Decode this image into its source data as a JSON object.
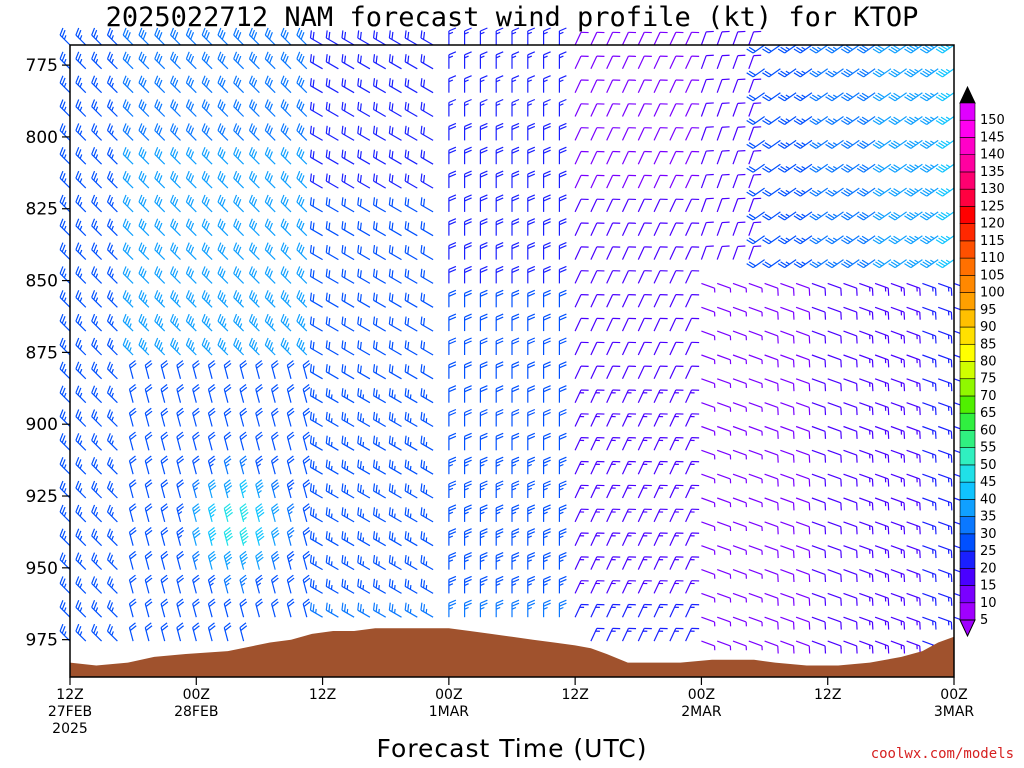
{
  "header": {
    "title": "2025022712 NAM forecast wind profile (kt) for KTOP"
  },
  "footer": {
    "xlabel": "Forecast Time (UTC)",
    "credit": "coolwx.com/models"
  },
  "colors": {
    "terrain": "#a0522d",
    "frame": "#000000",
    "credit": "#d62020"
  },
  "chart_data": {
    "type": "wind-barb-time-height",
    "title": "2025022712 NAM forecast wind profile (kt) for KTOP",
    "xlabel": "Forecast Time (UTC)",
    "ylabel": "",
    "x_range_hours": [
      0,
      84
    ],
    "y_pressure_range_hpa": [
      768,
      988
    ],
    "y_ticks": [
      775,
      800,
      825,
      850,
      875,
      900,
      925,
      950,
      975
    ],
    "x_ticks": [
      {
        "hour": 0,
        "lines": [
          "12Z",
          "27FEB",
          "2025"
        ]
      },
      {
        "hour": 12,
        "lines": [
          "00Z",
          "28FEB"
        ]
      },
      {
        "hour": 24,
        "lines": [
          "12Z"
        ]
      },
      {
        "hour": 36,
        "lines": [
          "00Z",
          "1MAR"
        ]
      },
      {
        "hour": 48,
        "lines": [
          "12Z"
        ]
      },
      {
        "hour": 60,
        "lines": [
          "00Z",
          "2MAR"
        ]
      },
      {
        "hour": 72,
        "lines": [
          "12Z"
        ]
      },
      {
        "hour": 84,
        "lines": [
          "00Z",
          "3MAR"
        ]
      }
    ],
    "colorbar": {
      "labels": [
        5,
        10,
        15,
        20,
        25,
        30,
        35,
        40,
        45,
        50,
        55,
        60,
        65,
        70,
        75,
        80,
        85,
        90,
        95,
        100,
        105,
        110,
        115,
        120,
        125,
        130,
        135,
        140,
        145,
        150
      ],
      "colors": [
        "#a000ff",
        "#7a00ff",
        "#4a00ff",
        "#1a20ff",
        "#0050ff",
        "#0a78ff",
        "#10a0ff",
        "#10c4ff",
        "#20e0e8",
        "#30f0c0",
        "#30f080",
        "#30f040",
        "#50f000",
        "#90f800",
        "#d0ff00",
        "#ffff00",
        "#ffe000",
        "#ffc000",
        "#ffa000",
        "#ff8800",
        "#ff7000",
        "#ff5000",
        "#ff2800",
        "#ff0000",
        "#ff0040",
        "#ff0070",
        "#ff00a0",
        "#ff00c8",
        "#ff00f0",
        "#e000ff"
      ],
      "end_high_color": "#000000",
      "end_low_color": "#ffffff"
    },
    "terrain_pressure_hpa": [
      {
        "hour": 0,
        "p": 983
      },
      {
        "hour": 2.5,
        "p": 984
      },
      {
        "hour": 5.5,
        "p": 983
      },
      {
        "hour": 8,
        "p": 981
      },
      {
        "hour": 11,
        "p": 980
      },
      {
        "hour": 15,
        "p": 979
      },
      {
        "hour": 19,
        "p": 976
      },
      {
        "hour": 21,
        "p": 975
      },
      {
        "hour": 23,
        "p": 973
      },
      {
        "hour": 25,
        "p": 972
      },
      {
        "hour": 27,
        "p": 972
      },
      {
        "hour": 29,
        "p": 971
      },
      {
        "hour": 33,
        "p": 971
      },
      {
        "hour": 36,
        "p": 971
      },
      {
        "hour": 38,
        "p": 972
      },
      {
        "hour": 40,
        "p": 973
      },
      {
        "hour": 42,
        "p": 974
      },
      {
        "hour": 44,
        "p": 975
      },
      {
        "hour": 46,
        "p": 976
      },
      {
        "hour": 48,
        "p": 977
      },
      {
        "hour": 49.5,
        "p": 978
      },
      {
        "hour": 51,
        "p": 980
      },
      {
        "hour": 53,
        "p": 983
      },
      {
        "hour": 58,
        "p": 983
      },
      {
        "hour": 61,
        "p": 982
      },
      {
        "hour": 63,
        "p": 982
      },
      {
        "hour": 65,
        "p": 982
      },
      {
        "hour": 67,
        "p": 983
      },
      {
        "hour": 70,
        "p": 984
      },
      {
        "hour": 73,
        "p": 984
      },
      {
        "hour": 76,
        "p": 983
      },
      {
        "hour": 79,
        "p": 981
      },
      {
        "hour": 81,
        "p": 979
      },
      {
        "hour": 82.5,
        "p": 976
      },
      {
        "hour": 84,
        "p": 974
      }
    ],
    "wind_regimes": [
      {
        "hours": [
          0,
          24
        ],
        "pressure_hpa": [
          768,
          880
        ],
        "direction_deg": 315,
        "speed_kt": [
          22,
          35
        ],
        "description": "northwest flow aloft"
      },
      {
        "hours": [
          6,
          24
        ],
        "pressure_hpa": [
          880,
          975
        ],
        "direction_deg": 345,
        "speed_kt": [
          20,
          50
        ],
        "description": "low-level north-northwest jet"
      },
      {
        "hours": [
          24,
          36
        ],
        "pressure_hpa": [
          768,
          975
        ],
        "direction_deg": 300,
        "speed_kt": [
          15,
          30
        ]
      },
      {
        "hours": [
          36,
          48
        ],
        "pressure_hpa": [
          768,
          975
        ],
        "direction_deg": 0,
        "speed_kt": [
          15,
          28
        ],
        "description": "northerly winds"
      },
      {
        "hours": [
          48,
          60
        ],
        "pressure_hpa": [
          768,
          975
        ],
        "direction_deg": 30,
        "speed_kt": [
          5,
          20
        ]
      },
      {
        "hours": [
          60,
          84
        ],
        "pressure_hpa": [
          850,
          975
        ],
        "direction_deg": 110,
        "speed_kt": [
          3,
          20
        ],
        "description": "light easterly low levels"
      },
      {
        "hours": [
          66,
          84
        ],
        "pressure_hpa": [
          768,
          850
        ],
        "direction_deg": 235,
        "speed_kt": [
          15,
          40
        ],
        "description": "southwest flow aloft"
      }
    ]
  }
}
